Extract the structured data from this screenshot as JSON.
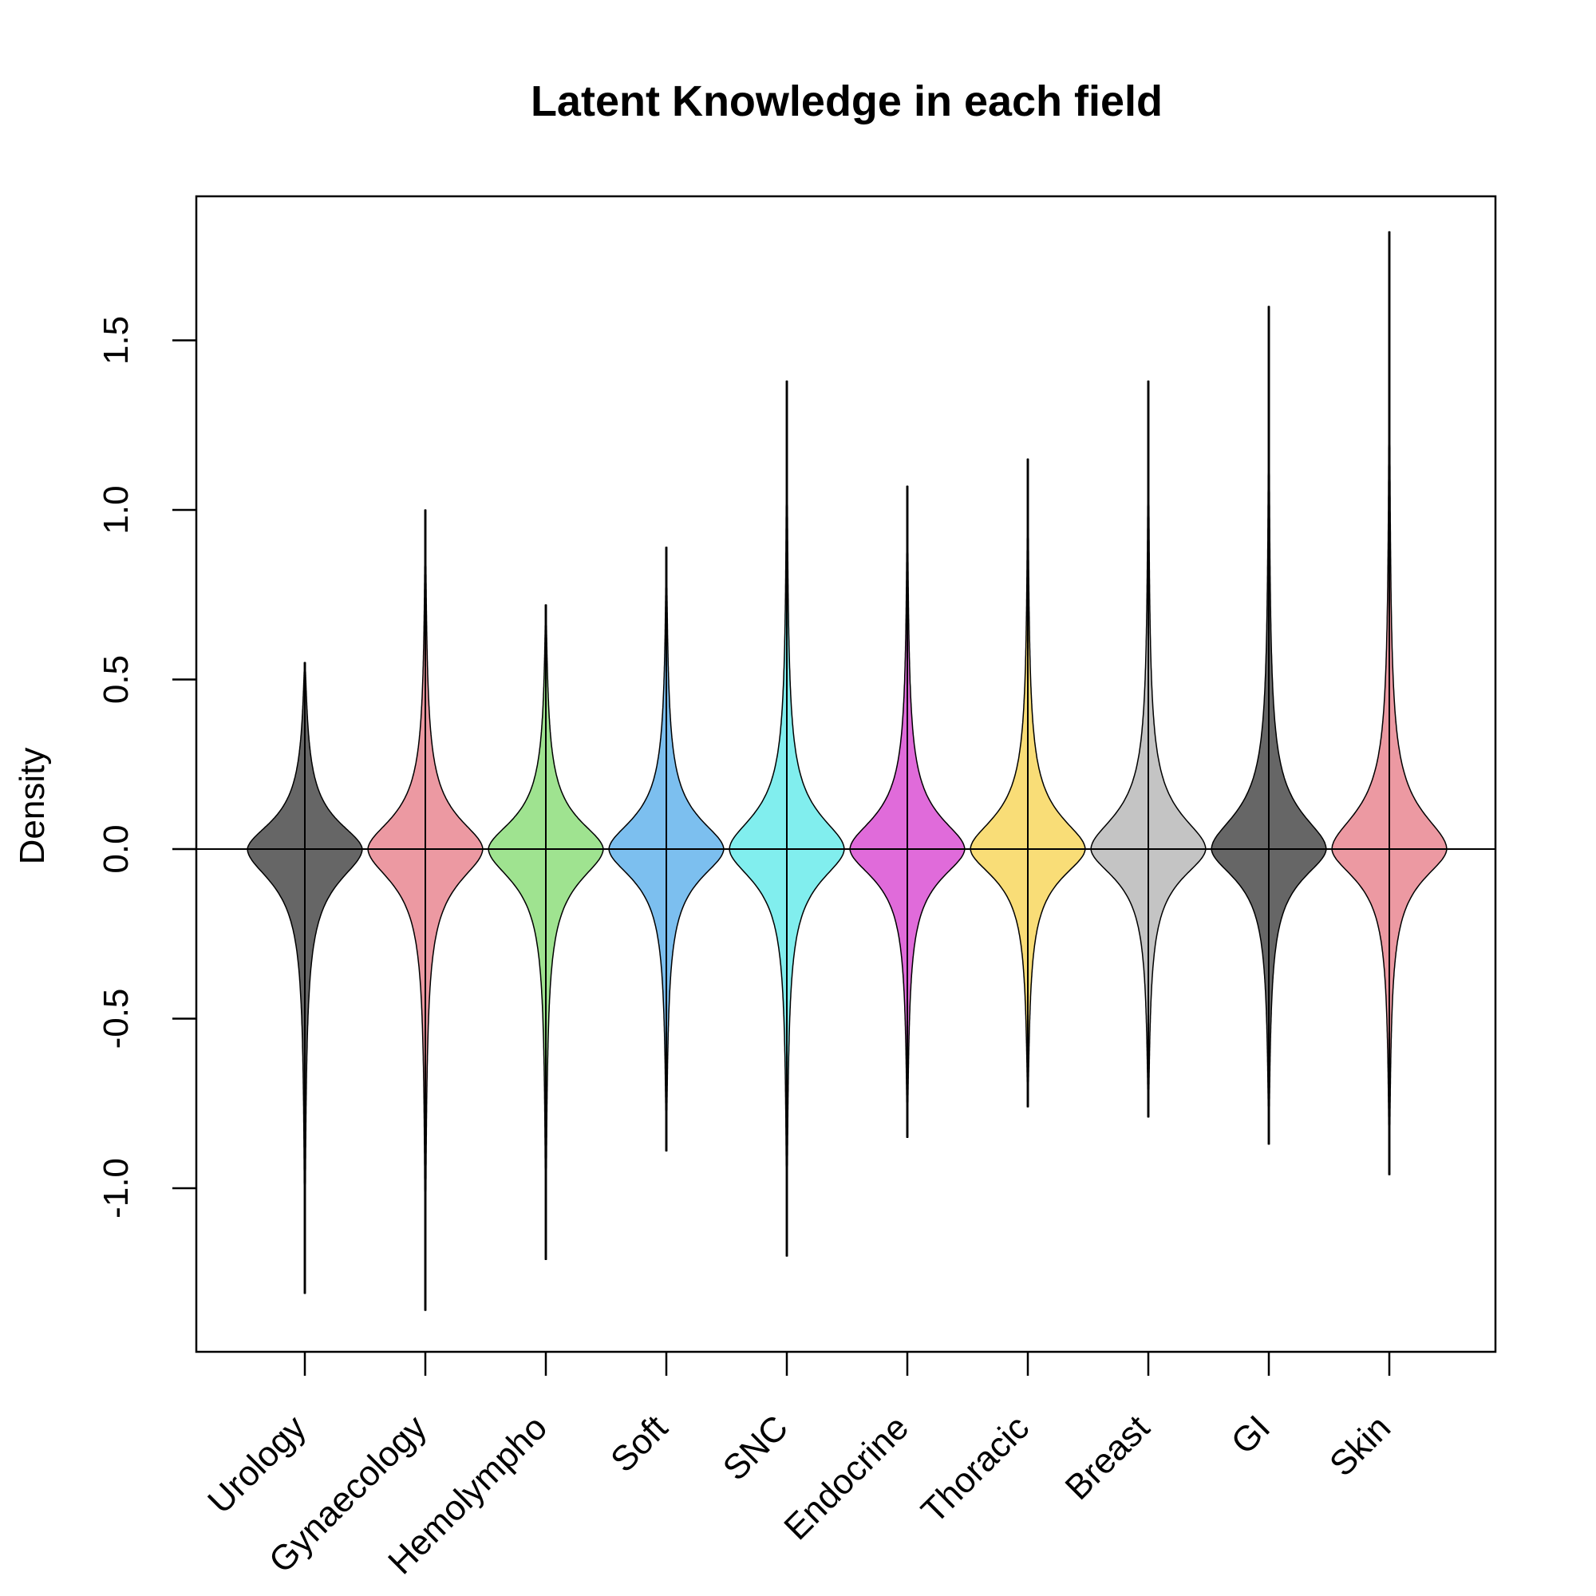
{
  "chart_data": {
    "type": "violin",
    "title": "Latent Knowledge in each field",
    "xlabel": "",
    "ylabel": "Density",
    "ylim": [
      -1.48,
      1.92
    ],
    "yticks": [
      -1.0,
      -0.5,
      0.0,
      0.5,
      1.0,
      1.5
    ],
    "ytick_labels": [
      "-1.0",
      "-0.5",
      "0.0",
      "0.5",
      "1.0",
      "1.5"
    ],
    "reference_line_y": 0.0,
    "grid": false,
    "legend": "none",
    "categories": [
      "Urology",
      "Gynaecology",
      "Hemolympho",
      "Soft",
      "SNC",
      "Endocrine",
      "Thoracic",
      "Breast",
      "GI",
      "Skin"
    ],
    "series": [
      {
        "category": "Urology",
        "color": "#666666",
        "min": -1.31,
        "max": 0.55,
        "median": 0.0
      },
      {
        "category": "Gynaecology",
        "color": "#EC99A2",
        "min": -1.36,
        "max": 1.0,
        "median": 0.0
      },
      {
        "category": "Hemolympho",
        "color": "#9FE390",
        "min": -1.21,
        "max": 0.72,
        "median": 0.0
      },
      {
        "category": "Soft",
        "color": "#7CBFEF",
        "min": -0.89,
        "max": 0.89,
        "median": 0.0
      },
      {
        "category": "SNC",
        "color": "#81EEEE",
        "min": -1.2,
        "max": 1.38,
        "median": 0.0
      },
      {
        "category": "Endocrine",
        "color": "#E06BDA",
        "min": -0.85,
        "max": 1.07,
        "median": 0.0
      },
      {
        "category": "Thoracic",
        "color": "#F9DD77",
        "min": -0.76,
        "max": 1.15,
        "median": 0.0
      },
      {
        "category": "Breast",
        "color": "#C4C4C4",
        "min": -0.79,
        "max": 1.38,
        "median": 0.0
      },
      {
        "category": "GI",
        "color": "#666666",
        "min": -0.87,
        "max": 1.6,
        "median": 0.0
      },
      {
        "category": "Skin",
        "color": "#EC99A2",
        "min": -0.96,
        "max": 1.82,
        "median": 0.0
      }
    ]
  }
}
